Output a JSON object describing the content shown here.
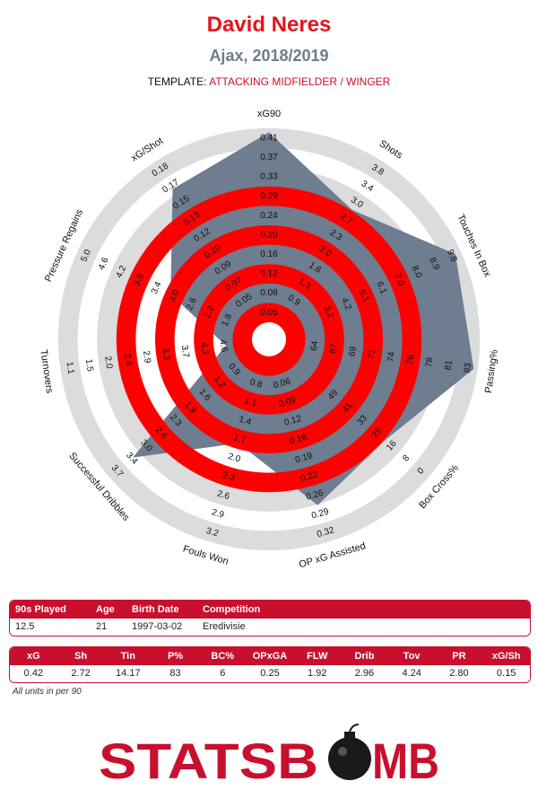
{
  "header": {
    "player": "David Neres",
    "club_season": "Ajax, 2018/2019",
    "template_label": "TEMPLATE:",
    "template_value": "ATTACKING MIDFIELDER / WINGER"
  },
  "colors": {
    "accent": "#e8131b",
    "subtitle": "#6b7d8c",
    "ring_red": "#ff0000",
    "ring_gray": "#dcdcdc",
    "poly": "#6e7d8f",
    "brand": "#c8102e"
  },
  "chart_data": {
    "type": "radar",
    "axes": [
      {
        "label": "xG90",
        "ticks": [
          "0.05",
          "0.08",
          "0.12",
          "0.16",
          "0.20",
          "0.24",
          "0.29",
          "0.33",
          "0.37",
          "0.41"
        ],
        "value": 0.42
      },
      {
        "label": "Shots",
        "ticks": [
          "0.9",
          "1.3",
          "1.6",
          "2.0",
          "2.3",
          "2.7",
          "3.0",
          "3.4",
          "3.8"
        ],
        "value": 2.72
      },
      {
        "label": "Touches In Box",
        "ticks": [
          "3.2",
          "4.2",
          "5.1",
          "6.1",
          "7.0",
          "8.0",
          "8.9",
          "9.8"
        ],
        "value": 14.17
      },
      {
        "label": "Passing%",
        "ticks": [
          "64",
          "67",
          "69",
          "71",
          "74",
          "76",
          "78",
          "81",
          "83"
        ],
        "value": 83
      },
      {
        "label": "Box Cross%",
        "ticks": [
          "49",
          "41",
          "33",
          "25",
          "16",
          "8",
          "0"
        ],
        "value": 6
      },
      {
        "label": "OP xG Assisted",
        "ticks": [
          "0.06",
          "0.09",
          "0.12",
          "0.16",
          "0.19",
          "0.22",
          "0.26",
          "0.29",
          "0.32"
        ],
        "value": 0.25
      },
      {
        "label": "Fouls Won",
        "ticks": [
          "0.8",
          "1.1",
          "1.4",
          "1.7",
          "2.0",
          "2.3",
          "2.6",
          "2.9",
          "3.2"
        ],
        "value": 1.92
      },
      {
        "label": "Successful Dribbles",
        "ticks": [
          "0.9",
          "1.2",
          "1.6",
          "1.9",
          "2.3",
          "2.6",
          "3.0",
          "3.4",
          "3.7"
        ],
        "value": 2.96
      },
      {
        "label": "Turnovers",
        "ticks": [
          "4.6",
          "4.2",
          "3.7",
          "3.3",
          "2.9",
          "2.4",
          "2.0",
          "1.5",
          "1.1"
        ],
        "value": 4.24
      },
      {
        "label": "Pressure Regains",
        "ticks": [
          "1.8",
          "2.2",
          "2.6",
          "3.0",
          "3.4",
          "3.8",
          "4.2",
          "4.6",
          "5.0"
        ],
        "value": 2.8
      },
      {
        "label": "xG/Shot",
        "ticks": [
          "0.05",
          "0.07",
          "0.09",
          "0.10",
          "0.12",
          "0.13",
          "0.15",
          "0.17",
          "0.18"
        ],
        "value": 0.15
      }
    ],
    "values_normalized": [
      1.0,
      0.72,
      0.99,
      1.0,
      0.72,
      0.82,
      0.48,
      0.86,
      0.14,
      0.48,
      0.85
    ]
  },
  "info_table": {
    "headers": [
      "90s Played",
      "Age",
      "Birth Date",
      "Competition"
    ],
    "values": [
      "12.5",
      "21",
      "1997-03-02",
      "Eredivisie"
    ]
  },
  "stats_table": {
    "headers": [
      "xG",
      "Sh",
      "Tin",
      "P%",
      "BC%",
      "OPxGA",
      "FLW",
      "Drib",
      "Tov",
      "PR",
      "xG/Sh"
    ],
    "values": [
      "0.42",
      "2.72",
      "14.17",
      "83",
      "6",
      "0.25",
      "1.92",
      "2.96",
      "4.24",
      "2.80",
      "0.15"
    ]
  },
  "note": "All units in per 90",
  "logo": {
    "text_left": "STATSB",
    "text_right": "MB"
  }
}
